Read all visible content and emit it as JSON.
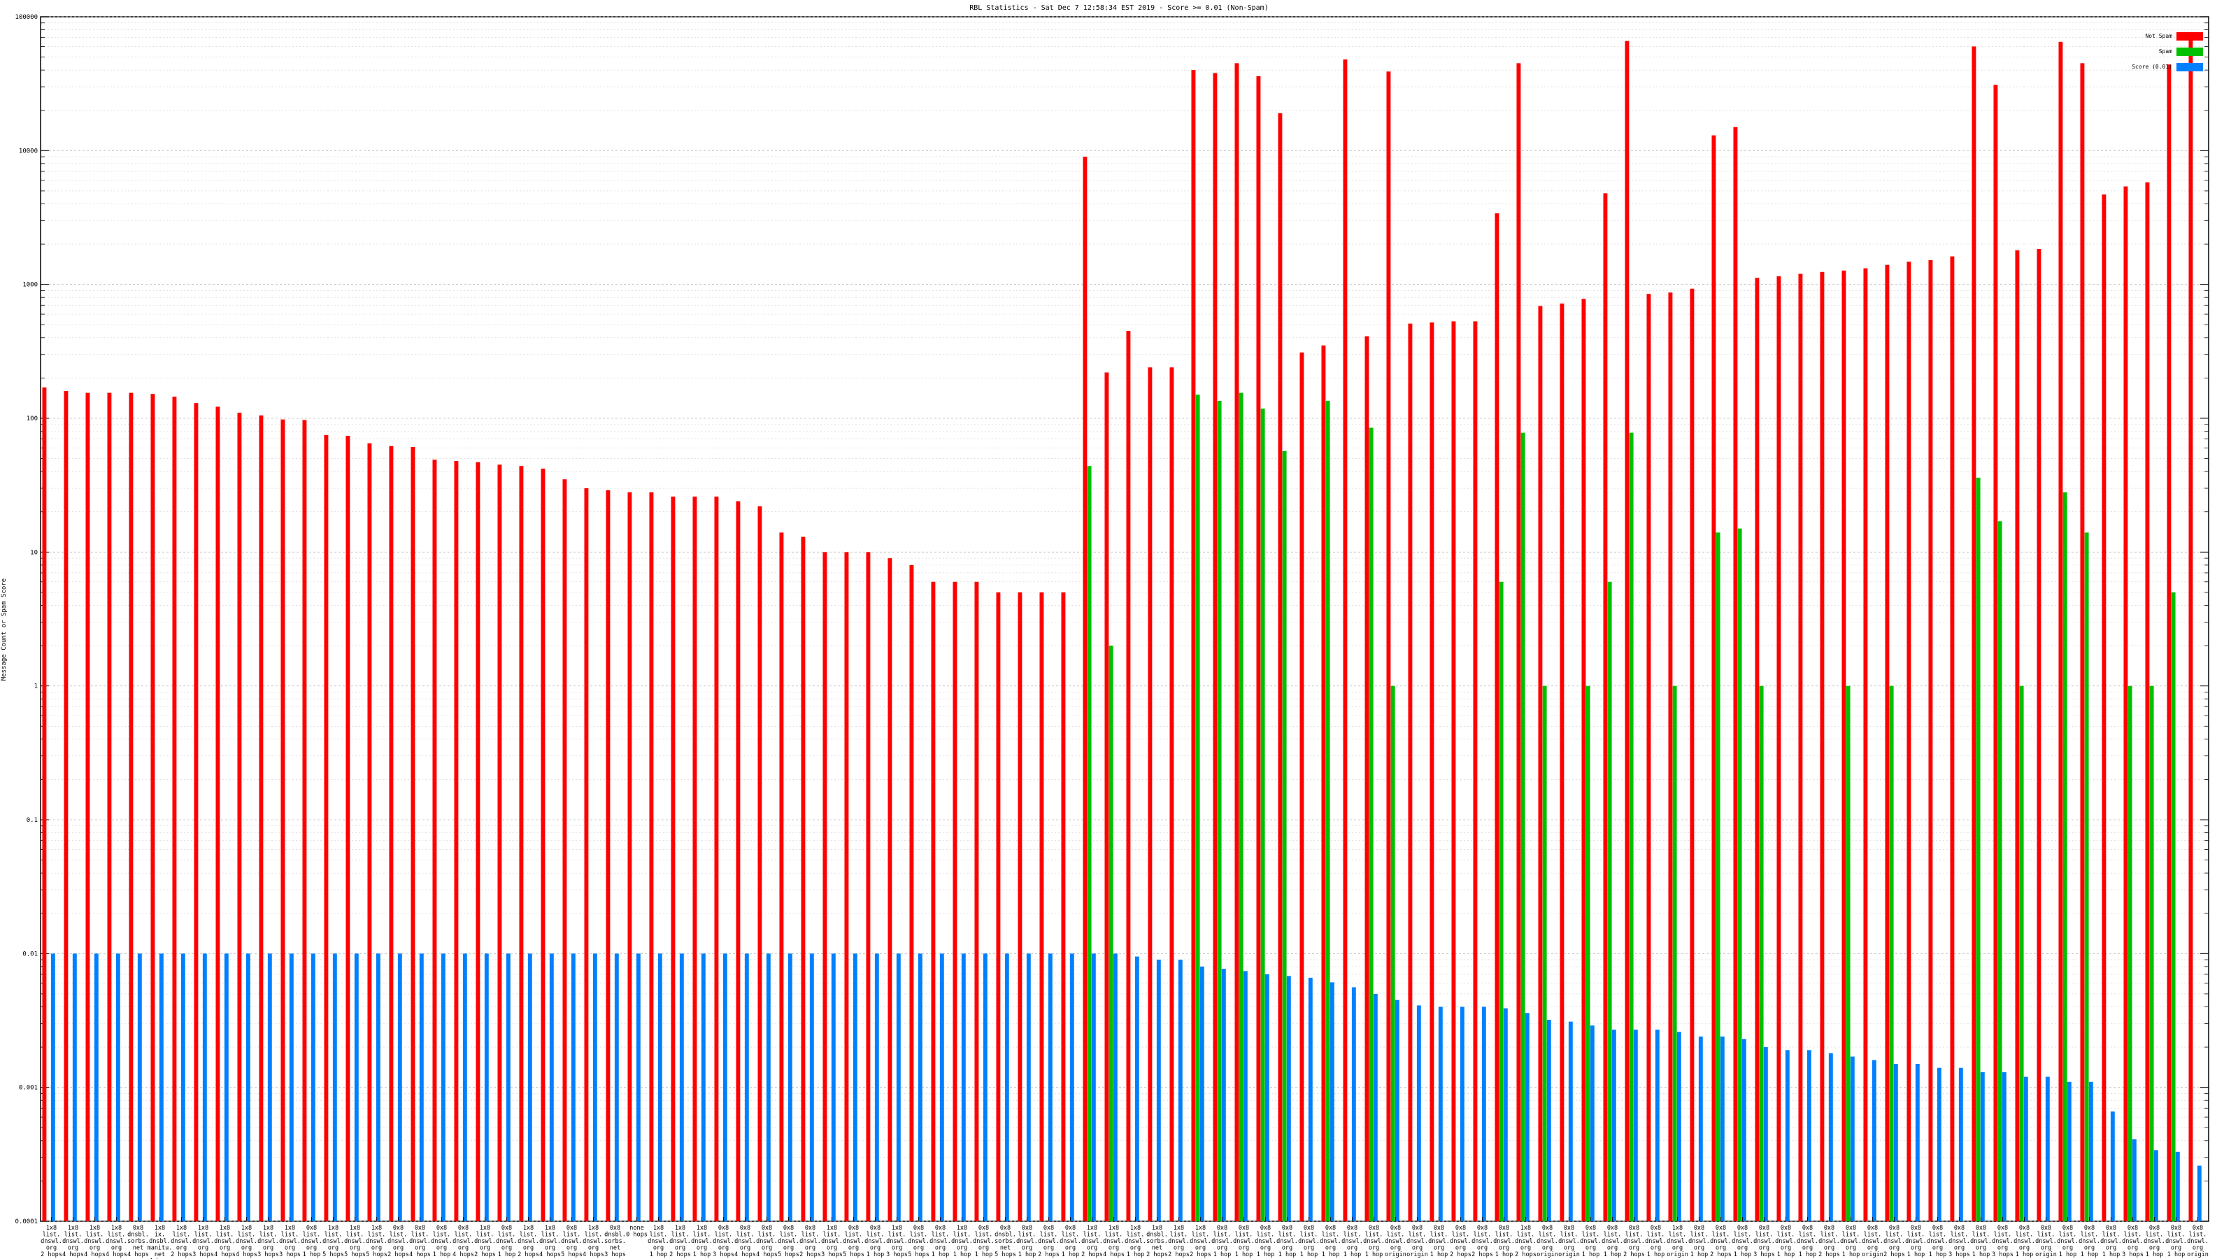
{
  "chart_data": {
    "type": "bar",
    "title": "RBL Statistics - Sat Dec  7 12:58:34 EST 2019 - Score >= 0.01 (Non-Spam)",
    "ylabel": "Message Count or Spam Score",
    "yscale": "log",
    "ylim": [
      0.0001,
      100000
    ],
    "yticks": [
      "0.0001",
      "0.001",
      "0.01",
      "0.1",
      "1",
      "10",
      "100",
      "1000",
      "10000",
      "100000"
    ],
    "grid": true,
    "legend_position": "top-right",
    "colors": {
      "not_spam": "#ff0000",
      "spam": "#00c000",
      "score": "#0080ff"
    },
    "categories": [
      "1x8 list. dnswl. org 2 hops",
      "1x8 list. dnswl. org 4 hops",
      "1x8 list. dnswl. org 4 hops",
      "1x8 list. dnswl. org 4 hops",
      "0x8 dnsbl. sorbs. net 4 hops",
      "1x8 ix. dnsbl. manitu. net 4 hops",
      "1x8 list. dnswl. org 2 hops",
      "1x8 list. dnswl. org 3 hops",
      "1x8 list. dnswl. org 4 hops",
      "1x8 list. dnswl. org 4 hops",
      "1x8 list. dnswl. org 3 hops",
      "1x8 list. dnswl. org 3 hops",
      "0x8 list. dnswl. org 1 hop",
      "1x8 list. dnswl. org 5 hops",
      "1x8 list. dnswl. org 5 hops",
      "1x8 list. dnswl. org 5 hops",
      "0x8 list. dnswl. org 2 hops",
      "0x8 list. dnswl. org 4 hops",
      "0x8 list. dnswl. org 1 hop",
      "0x8 list. dnswl. org 4 hops",
      "1x8 list. dnswl. org 2 hops",
      "0x8 list. dnswl. org 1 hop",
      "1x8 list. dnswl. org 2 hops",
      "1x8 list. dnswl. org 4 hops",
      "0x8 list. dnswl. org 5 hops",
      "1x8 list. dnswl. org 4 hops",
      "0x8 dnsbl. sorbs. net 3 hops",
      "none 0 hops",
      "1x8 list. dnswl. org 1 hop",
      "1x8 list. dnswl. org 2 hops",
      "1x8 list. dnswl. org 1 hop",
      "0x8 list. dnswl. org 3 hops",
      "0x8 list. dnswl. org 4 hops",
      "0x8 list. dnswl. org 4 hops",
      "0x8 list. dnswl. org 5 hops",
      "0x8 list. dnswl. org 2 hops",
      "1x8 list. dnswl. org 3 hops",
      "0x8 list. dnswl. org 5 hops",
      "0x8 list. dnswl. org 1 hop",
      "1x8 list. dnswl. org 3 hops",
      "0x8 list. dnswl. org 5 hops",
      "0x8 list. dnswl. org 1 hop",
      "1x8 list. dnswl. org 1 hop",
      "0x8 list. dnswl. org 1 hop",
      "0x8 dnsbl. sorbs. net 5 hops",
      "0x8 list. dnswl. org 1 hop",
      "0x8 list. dnswl. org 2 hops",
      "0x8 list. dnswl. org 1 hop",
      "1x8 list. dnswl. org 2 hops",
      "1x8 list. dnswl. org 4 hops",
      "1x8 list. dnswl. org 1 hop",
      "1x8 dnsbl. sorbs. net 2 hops",
      "1x8 list. dnswl. org 2 hops",
      "1x8 list. dnswl. org 2 hops",
      "0x8 list. dnswl. org 1 hop",
      "0x8 list. dnswl. org 1 hop",
      "0x8 list. dnswl. org 1 hop",
      "0x8 list. dnswl. org 1 hop",
      "0x8 list. dnswl. org 1 hop",
      "0x8 list. dnswl. org 1 hop",
      "0x8 list. dnswl. org 1 hop",
      "0x8 list. dnswl. org 1 hop",
      "0x8 list. dnswl. org origin",
      "0x8 list. dnswl. org origin",
      "0x8 list. dnswl. org 1 hop",
      "0x8 list. dnswl. org 2 hops",
      "0x8 list. dnswl. org 2 hops",
      "0x8 list. dnswl. org 1 hop",
      "1x8 list. dnswl. org 2 hops",
      "0x8 list. dnswl. org origin",
      "0x8 list. dnswl. org origin",
      "0x8 list. dnswl. org 1 hop",
      "0x8 list. dnswl. org 1 hop",
      "0x8 list. dnswl. org 2 hops",
      "0x8 list. dnswl. org 1 hop",
      "1x8 list. dnswl. org origin",
      "0x8 list. dnswl. org 1 hop",
      "0x8 list. dnswl. org 2 hops",
      "0x8 list. dnswl. org 1 hop",
      "0x8 list. dnswl. org 3 hops",
      "0x8 list. dnswl. org 1 hop",
      "0x8 list. dnswl. org 1 hop",
      "0x8 list. dnswl. org 2 hops",
      "0x8 list. dnswl. org 1 hop",
      "0x8 list. dnswl. org origin",
      "0x8 list. dnswl. org 2 hops",
      "0x8 list. dnswl. org 1 hop",
      "0x8 list. dnswl. org 1 hop",
      "0x8 list. dnswl. org 3 hops",
      "0x8 list. dnswl. org 1 hop",
      "0x8 list. dnswl. org 3 hops",
      "0x8 list. dnswl. org 1 hop",
      "0x8 list. dnswl. org origin",
      "0x8 list. dnswl. org 1 hop",
      "0x8 list. dnswl. org 1 hop",
      "0x8 list. dnswl. org 1 hop",
      "0x8 list. dnswl. org 3 hops",
      "0x8 list. dnswl. org 1 hop",
      "0x8 list. dnswl. org 1 hop",
      "0x8 list. dnswl. org origin"
    ],
    "series": [
      {
        "name": "Not Spam",
        "values": [
          170,
          160,
          155,
          155,
          155,
          152,
          145,
          130,
          122,
          110,
          105,
          98,
          97,
          75,
          74,
          65,
          62,
          61,
          49,
          48,
          47,
          45,
          44,
          42,
          35,
          30,
          29,
          28,
          28,
          26,
          26,
          26,
          24,
          22,
          14,
          13,
          10,
          10,
          10,
          9,
          8,
          6,
          6,
          6,
          5,
          5,
          5,
          5,
          9000,
          220,
          450,
          240,
          240,
          40000,
          38000,
          45000,
          36000,
          19000,
          310,
          350,
          48000,
          410,
          39000,
          510,
          520,
          530,
          530,
          3400,
          45000,
          690,
          720,
          780,
          4800,
          66000,
          850,
          870,
          930,
          13000,
          15000,
          1120,
          1150,
          1200,
          1240,
          1270,
          1320,
          1400,
          1480,
          1520,
          1620,
          60000,
          31000,
          1800,
          1840,
          65000,
          45000,
          4700,
          5400,
          5800,
          44000,
          73000
        ]
      },
      {
        "name": "Spam",
        "values": [
          null,
          null,
          null,
          null,
          null,
          null,
          null,
          null,
          null,
          null,
          null,
          null,
          null,
          null,
          null,
          null,
          null,
          null,
          null,
          null,
          null,
          null,
          null,
          null,
          null,
          null,
          null,
          null,
          null,
          null,
          null,
          null,
          null,
          null,
          null,
          null,
          null,
          null,
          null,
          null,
          null,
          null,
          null,
          null,
          null,
          null,
          null,
          null,
          44,
          2,
          null,
          null,
          null,
          150,
          135,
          155,
          118,
          57,
          null,
          135,
          null,
          85,
          1,
          null,
          null,
          null,
          null,
          6,
          78,
          1,
          null,
          1,
          6,
          78,
          null,
          1,
          null,
          14,
          15,
          1,
          null,
          null,
          null,
          1,
          null,
          1,
          null,
          null,
          null,
          36,
          17,
          1,
          null,
          28,
          14,
          null,
          1,
          1,
          5,
          null
        ]
      },
      {
        "name": "Score (0.01)",
        "values": [
          0.01,
          0.01,
          0.01,
          0.01,
          0.01,
          0.01,
          0.01,
          0.01,
          0.01,
          0.01,
          0.01,
          0.01,
          0.01,
          0.01,
          0.01,
          0.01,
          0.01,
          0.01,
          0.01,
          0.01,
          0.01,
          0.01,
          0.01,
          0.01,
          0.01,
          0.01,
          0.01,
          0.01,
          0.01,
          0.01,
          0.01,
          0.01,
          0.01,
          0.01,
          0.01,
          0.01,
          0.01,
          0.01,
          0.01,
          0.01,
          0.01,
          0.01,
          0.01,
          0.01,
          0.01,
          0.01,
          0.01,
          0.01,
          0.01,
          0.01,
          0.0095,
          0.009,
          0.009,
          0.008,
          0.0077,
          0.0074,
          0.007,
          0.0068,
          0.0066,
          0.0061,
          0.0056,
          0.005,
          0.0045,
          0.0041,
          0.004,
          0.004,
          0.004,
          0.0039,
          0.0036,
          0.0032,
          0.0031,
          0.0029,
          0.0027,
          0.0027,
          0.0027,
          0.0026,
          0.0024,
          0.0024,
          0.0023,
          0.002,
          0.0019,
          0.0019,
          0.0018,
          0.0017,
          0.0016,
          0.0015,
          0.0015,
          0.0014,
          0.0014,
          0.0013,
          0.0013,
          0.0012,
          0.0012,
          0.0011,
          0.0011,
          0.00066,
          0.00041,
          0.00034,
          0.00033,
          0.00026
        ]
      }
    ]
  }
}
